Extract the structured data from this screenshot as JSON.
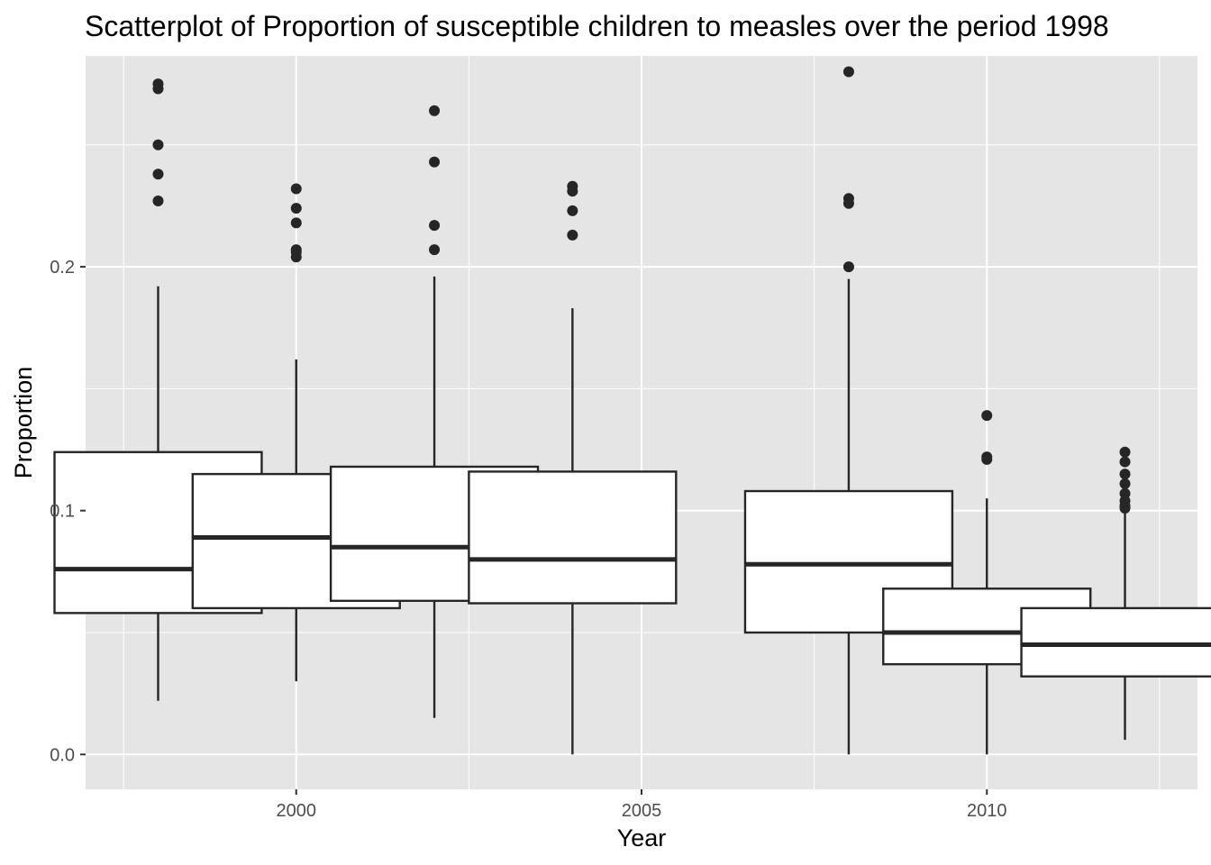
{
  "chart_data": {
    "type": "boxplot",
    "title": "Scatterplot of Proportion of susceptible children to measles over the period 1998",
    "xlabel": "Year",
    "ylabel": "Proportion",
    "xlim": [
      1996.95,
      2013.05
    ],
    "ylim": [
      -0.0143,
      0.2865
    ],
    "x_ticks": [
      2000,
      2005,
      2010
    ],
    "x_tick_labels": [
      "2000",
      "2005",
      "2010"
    ],
    "y_ticks": [
      0.0,
      0.1,
      0.2
    ],
    "y_tick_labels": [
      "0.0",
      "0.1",
      "0.2"
    ],
    "grid": true,
    "colors": {
      "panel": "#e5e5e5",
      "grid": "#ffffff",
      "box_fill": "#ffffff",
      "box_stroke": "#262626",
      "tick_text": "#4d4d4d"
    },
    "boxes": [
      {
        "year": 1998,
        "lower_whisker": 0.022,
        "q1": 0.058,
        "median": 0.076,
        "q3": 0.124,
        "upper_whisker": 0.192,
        "outliers": [
          0.275,
          0.273,
          0.25,
          0.238,
          0.227
        ]
      },
      {
        "year": 2000,
        "lower_whisker": 0.03,
        "q1": 0.06,
        "median": 0.089,
        "q3": 0.115,
        "upper_whisker": 0.162,
        "outliers": [
          0.232,
          0.224,
          0.218,
          0.207,
          0.206,
          0.204
        ]
      },
      {
        "year": 2002,
        "lower_whisker": 0.015,
        "q1": 0.063,
        "median": 0.085,
        "q3": 0.118,
        "upper_whisker": 0.196,
        "outliers": [
          0.264,
          0.243,
          0.217,
          0.207
        ]
      },
      {
        "year": 2004,
        "lower_whisker": 0.0,
        "q1": 0.062,
        "median": 0.08,
        "q3": 0.116,
        "upper_whisker": 0.183,
        "outliers": [
          0.233,
          0.231,
          0.223,
          0.213
        ]
      },
      {
        "year": 2008,
        "lower_whisker": 0.0,
        "q1": 0.05,
        "median": 0.078,
        "q3": 0.108,
        "upper_whisker": 0.195,
        "outliers": [
          0.28,
          0.228,
          0.226,
          0.2
        ]
      },
      {
        "year": 2010,
        "lower_whisker": 0.0,
        "q1": 0.037,
        "median": 0.05,
        "q3": 0.068,
        "upper_whisker": 0.105,
        "outliers": [
          0.139,
          0.122,
          0.121
        ]
      },
      {
        "year": 2012,
        "lower_whisker": 0.006,
        "q1": 0.032,
        "median": 0.045,
        "q3": 0.06,
        "upper_whisker": 0.1,
        "outliers": [
          0.124,
          0.12,
          0.115,
          0.111,
          0.107,
          0.104,
          0.102,
          0.101
        ]
      }
    ]
  }
}
